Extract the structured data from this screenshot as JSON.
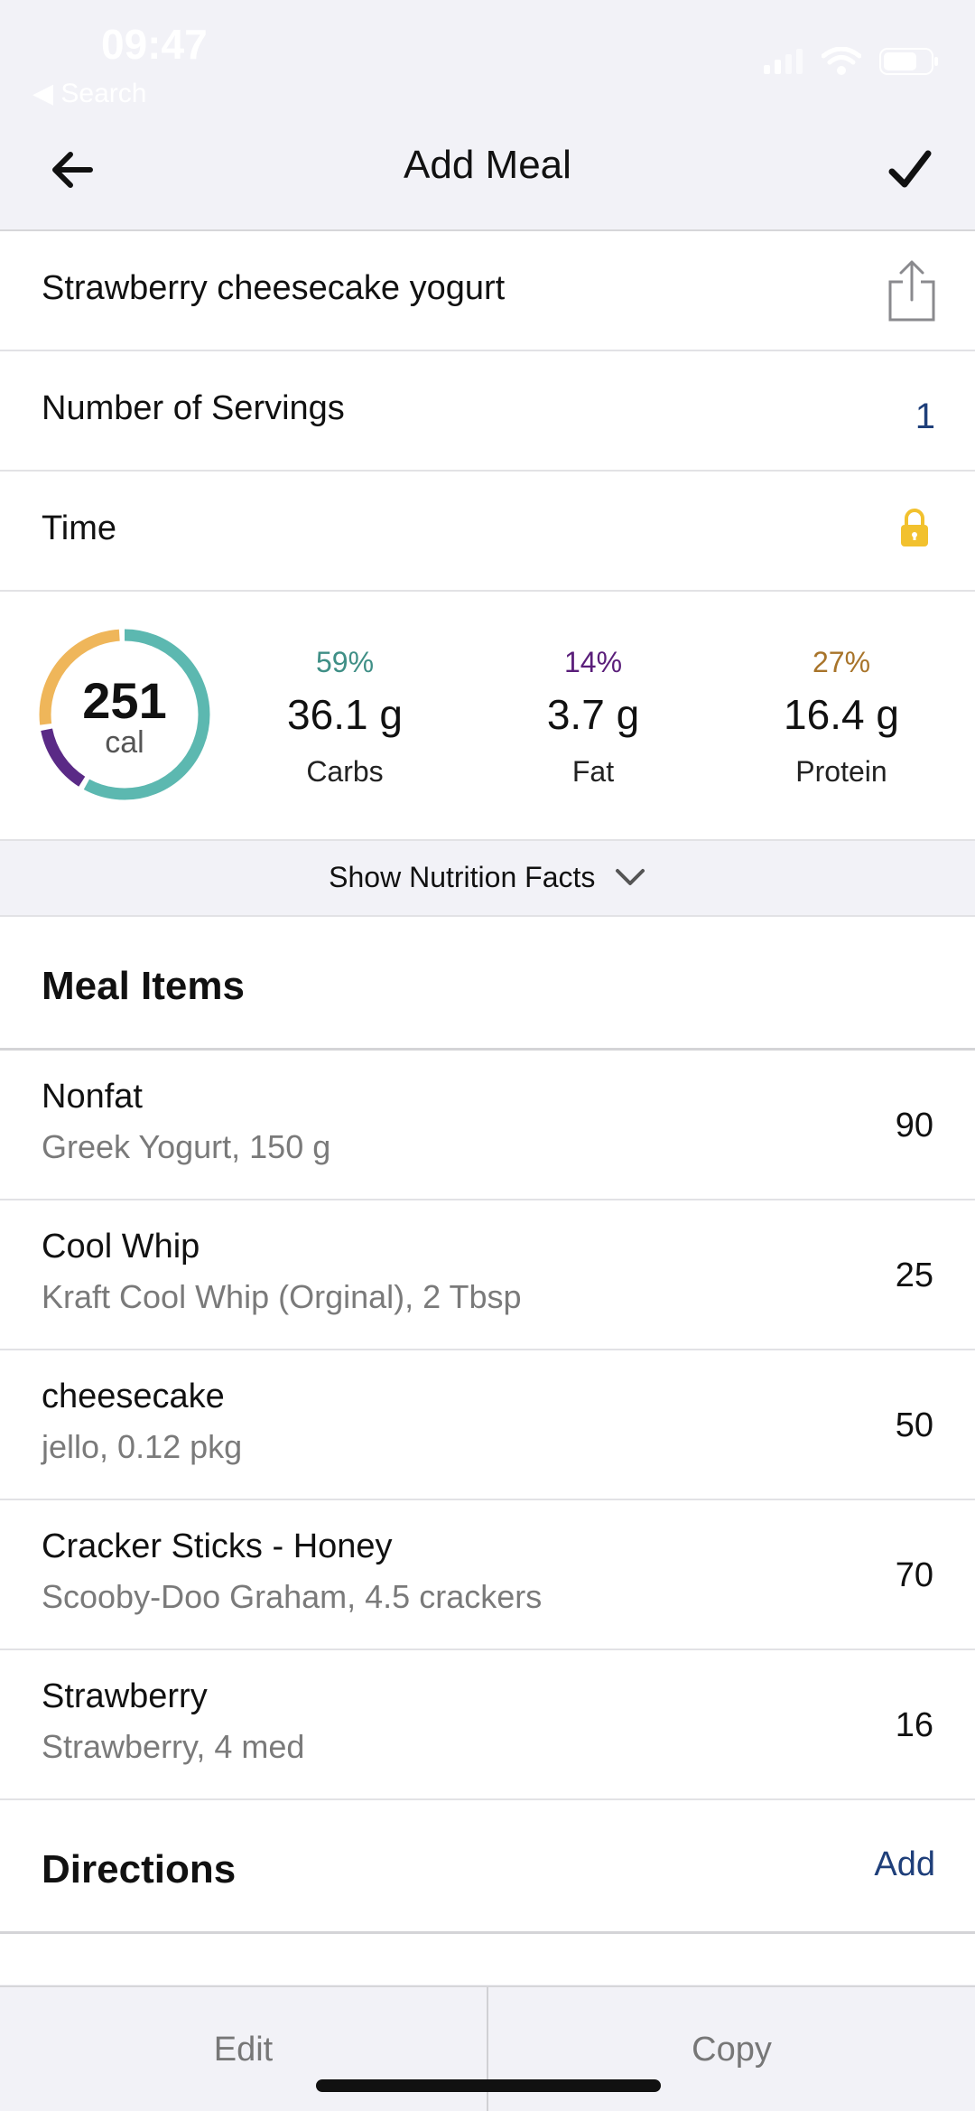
{
  "status": {
    "time": "09:47",
    "back_label": "◀ Search"
  },
  "nav": {
    "title": "Add Meal"
  },
  "meal": {
    "name": "Strawberry cheesecake yogurt",
    "servings_label": "Number of Servings",
    "servings_value": "1",
    "time_label": "Time"
  },
  "summary": {
    "calories": "251",
    "cal_unit": "cal",
    "macros": [
      {
        "pct": "59%",
        "value": "36.1 g",
        "label": "Carbs",
        "color": "#3f8f86"
      },
      {
        "pct": "14%",
        "value": "3.7 g",
        "label": "Fat",
        "color": "#5a1e7a"
      },
      {
        "pct": "27%",
        "value": "16.4 g",
        "label": "Protein",
        "color": "#a8742a"
      }
    ],
    "ring_colors": {
      "carbs": "#5cb8b0",
      "fat": "#5a2a86",
      "protein": "#efb65a"
    }
  },
  "nutrition_toggle": {
    "label": "Show Nutrition Facts"
  },
  "meal_items": {
    "title": "Meal Items",
    "items": [
      {
        "name": "Nonfat",
        "desc": "Greek Yogurt, 150 g",
        "cal": "90"
      },
      {
        "name": "Cool Whip",
        "desc": "Kraft Cool Whip (Orginal), 2 Tbsp",
        "cal": "25"
      },
      {
        "name": "cheesecake",
        "desc": "jello, 0.12 pkg",
        "cal": "50"
      },
      {
        "name": "Cracker Sticks - Honey",
        "desc": "Scooby-Doo Graham, 4.5 crackers",
        "cal": "70"
      },
      {
        "name": "Strawberry",
        "desc": "Strawberry, 4 med",
        "cal": "16"
      }
    ]
  },
  "directions": {
    "title": "Directions",
    "action": "Add"
  },
  "bottom_bar": {
    "edit": "Edit",
    "copy": "Copy"
  },
  "colors": {
    "accent": "#1f3f7a",
    "lock": "#f2c12e"
  }
}
